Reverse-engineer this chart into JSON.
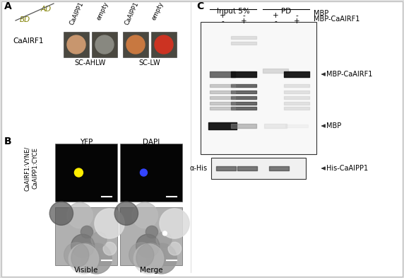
{
  "panel_A_label": "A",
  "panel_B_label": "B",
  "panel_C_label": "C",
  "panel_A": {
    "AD": "AD",
    "BD": "BD",
    "col_labels": [
      "CaAIPP1",
      "empty",
      "CaAIPP1",
      "empty"
    ],
    "row_label": "CaAIRF1",
    "condition1": "SC-AHLW",
    "condition2": "SC-LW",
    "spot_colors": [
      "#c8966e",
      "#888880",
      "#c87840",
      "#cc3322"
    ],
    "spot_bg_colors": [
      "#4a4840",
      "#4a4840",
      "#4a4840",
      "#4a4840"
    ]
  },
  "panel_B": {
    "row_label1": "CaAIRF1:VYNE/",
    "row_label2": "CaAIPP1:CYCE",
    "col_labels": [
      "YFP",
      "DAPI"
    ],
    "bottom_labels": [
      "Visible",
      "Merge"
    ],
    "yfp_dot_color": "#ffee00",
    "dapi_dot_color": "#3344ff"
  },
  "panel_C": {
    "input_label": "Input 5%",
    "pd_label": "PD",
    "mbp_signs": [
      "+",
      "-",
      "+",
      "-"
    ],
    "mbpcairf_signs": [
      "-",
      "+",
      "-",
      "+"
    ],
    "label_mbp": "MBP",
    "label_mbpcairf1": "MBP-CaAIRF1",
    "label_alpha_his": "α-His",
    "label_his_caipp1": "His-CaAIPP1"
  },
  "text_color_olive": "#808000",
  "bg_color": "#e0e0e0"
}
